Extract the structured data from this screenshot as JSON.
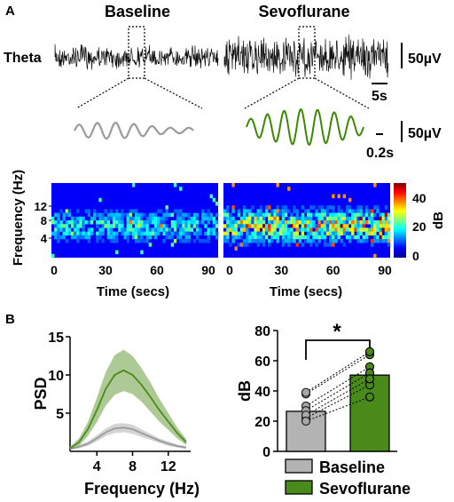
{
  "panelA": {
    "label": "A",
    "row_label": "Theta",
    "baseline_title": "Baseline",
    "sevo_title": "Sevoflurane",
    "scale_amp": "50µV",
    "scale_time_long": "5s",
    "scale_amp_zoom": "50µV",
    "scale_time_short": "0.2s",
    "colors": {
      "baseline_wave": "#9a9a9a",
      "sevo_wave": "#3a8a00",
      "raw_trace": "#111111"
    }
  },
  "spectrogram": {
    "ylabel": "Frequency (Hz)",
    "yticks": [
      "12",
      "8",
      "4"
    ],
    "xlabel_left": "Time (secs)",
    "xlabel_right": "Time (secs)",
    "xticks_left": [
      "0",
      "30",
      "60",
      "90"
    ],
    "xticks_right": [
      "0",
      "30",
      "60",
      "90"
    ],
    "colorbar_ticks": [
      "40",
      "20",
      "0"
    ],
    "colorbar_label": "dB",
    "colormap": "jet"
  },
  "panelB": {
    "label": "B"
  },
  "chart_data": [
    {
      "type": "line",
      "ylabel": "PSD",
      "xlabel": "Frequency (Hz)",
      "x": [
        1,
        2,
        3,
        4,
        5,
        6,
        7,
        8,
        9,
        10,
        11,
        12,
        13,
        14
      ],
      "xticks": [
        "4",
        "8",
        "12"
      ],
      "yticks": [
        "5",
        "10",
        "15"
      ],
      "xlim": [
        1,
        14.5
      ],
      "ylim": [
        0,
        15
      ],
      "series": [
        {
          "values": [
            0.3,
            0.6,
            1.0,
            1.7,
            2.5,
            3.0,
            3.1,
            2.9,
            2.4,
            1.9,
            1.4,
            1.0,
            0.7,
            0.5
          ],
          "sem": [
            0.1,
            0.2,
            0.3,
            0.4,
            0.5,
            0.6,
            0.6,
            0.6,
            0.5,
            0.4,
            0.3,
            0.3,
            0.2,
            0.2
          ],
          "color": "#9a9a9a"
        },
        {
          "values": [
            0.4,
            1.2,
            2.9,
            5.4,
            8.2,
            10.0,
            10.6,
            10.0,
            8.7,
            7.1,
            5.4,
            3.9,
            2.4,
            1.2
          ],
          "sem": [
            0.2,
            0.5,
            0.9,
            1.6,
            2.2,
            2.6,
            2.7,
            2.5,
            2.2,
            1.9,
            1.5,
            1.1,
            0.7,
            0.4
          ],
          "color": "#4a8a1a"
        }
      ]
    },
    {
      "type": "bar",
      "ylabel": "dB",
      "categories": [
        "Baseline",
        "Sevoflurane"
      ],
      "values": [
        26.5,
        50.5
      ],
      "ylim": [
        0,
        80
      ],
      "yticks": [
        "0",
        "20",
        "40",
        "60",
        "80"
      ],
      "significance": "*",
      "paired_points": [
        [
          38,
          64
        ],
        [
          39,
          66
        ],
        [
          30,
          56
        ],
        [
          27,
          52
        ],
        [
          22,
          44
        ],
        [
          24,
          48
        ],
        [
          20,
          36
        ]
      ],
      "colors": {
        "baseline": "#b3b3b3",
        "sevo": "#4a8a1a"
      },
      "legend": [
        "Baseline",
        "Sevoflurane"
      ]
    }
  ]
}
